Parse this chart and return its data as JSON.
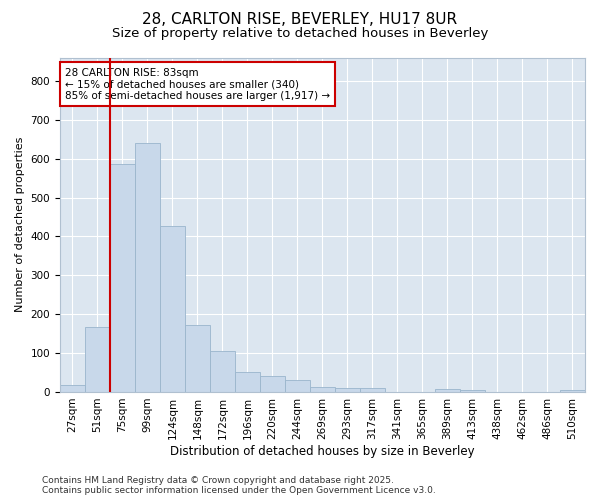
{
  "title_line1": "28, CARLTON RISE, BEVERLEY, HU17 8UR",
  "title_line2": "Size of property relative to detached houses in Beverley",
  "xlabel": "Distribution of detached houses by size in Beverley",
  "ylabel": "Number of detached properties",
  "categories": [
    "27sqm",
    "51sqm",
    "75sqm",
    "99sqm",
    "124sqm",
    "148sqm",
    "172sqm",
    "196sqm",
    "220sqm",
    "244sqm",
    "269sqm",
    "293sqm",
    "317sqm",
    "341sqm",
    "365sqm",
    "389sqm",
    "413sqm",
    "438sqm",
    "462sqm",
    "486sqm",
    "510sqm"
  ],
  "values": [
    18,
    168,
    585,
    640,
    428,
    172,
    105,
    52,
    40,
    32,
    12,
    10,
    10,
    0,
    0,
    7,
    5,
    0,
    0,
    0,
    6
  ],
  "bar_color": "#c8d8ea",
  "bar_edge_color": "#9ab5cc",
  "vline_bin_index": 2,
  "vline_color": "#cc0000",
  "annotation_text": "28 CARLTON RISE: 83sqm\n← 15% of detached houses are smaller (340)\n85% of semi-detached houses are larger (1,917) →",
  "annotation_box_facecolor": "#ffffff",
  "annotation_box_edgecolor": "#cc0000",
  "ylim": [
    0,
    860
  ],
  "yticks": [
    0,
    100,
    200,
    300,
    400,
    500,
    600,
    700,
    800
  ],
  "plot_bg_color": "#dce6f0",
  "fig_bg_color": "#ffffff",
  "grid_color": "#ffffff",
  "footer_text": "Contains HM Land Registry data © Crown copyright and database right 2025.\nContains public sector information licensed under the Open Government Licence v3.0.",
  "title_fontsize": 11,
  "subtitle_fontsize": 9.5,
  "axis_label_fontsize": 8.5,
  "tick_fontsize": 7.5,
  "annotation_fontsize": 7.5,
  "footer_fontsize": 6.5,
  "ylabel_fontsize": 8
}
